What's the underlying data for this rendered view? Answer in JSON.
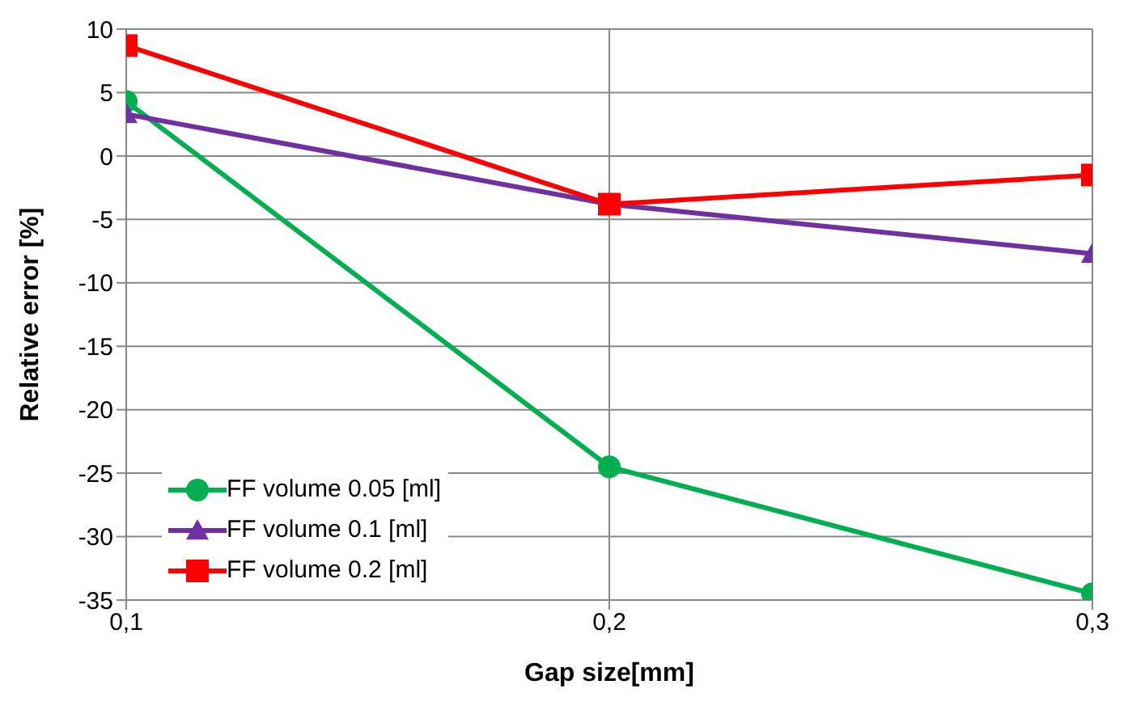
{
  "chart_data": {
    "type": "line",
    "xlabel": "Gap size[mm]",
    "ylabel": "Relative error  [%]",
    "x": [
      0.1,
      0.2,
      0.3
    ],
    "xlim": [
      0.1,
      0.3
    ],
    "xticks": [
      {
        "value": 0.1,
        "label": "0,1"
      },
      {
        "value": 0.2,
        "label": "0,2"
      },
      {
        "value": 0.3,
        "label": "0,3"
      }
    ],
    "ylim": [
      -35,
      10
    ],
    "yticks": [
      -35,
      -30,
      -25,
      -20,
      -15,
      -10,
      -5,
      0,
      5,
      10
    ],
    "grid": true,
    "legend": "bottom left",
    "line_style": "solid",
    "series": [
      {
        "name": "FF volume 0.05 [ml]",
        "color": "#00b050",
        "marker": "circle",
        "values": [
          4.3,
          -24.5,
          -34.5
        ]
      },
      {
        "name": "FF volume 0.1 [ml]",
        "color": "#7030a0",
        "marker": "triangle",
        "values": [
          3.3,
          -3.8,
          -7.7
        ]
      },
      {
        "name": "FF volume 0.2 [ml]",
        "color": "#ff0000",
        "marker": "square",
        "values": [
          8.7,
          -3.8,
          -1.5
        ]
      }
    ]
  }
}
